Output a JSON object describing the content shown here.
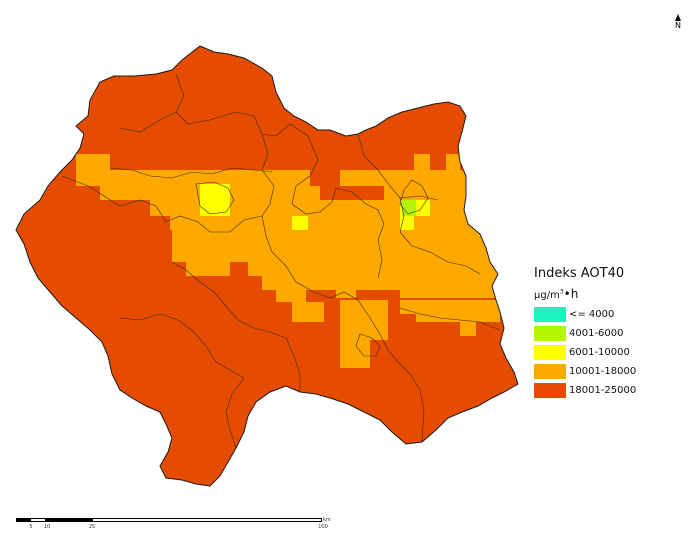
{
  "legend": {
    "title": "Indeks AOT40",
    "unit_prefix": "µg/m",
    "unit_exp": "3",
    "unit_suffix": "•h",
    "classes": [
      {
        "label": "<= 4000",
        "color": "#19f5c0"
      },
      {
        "label": "4001-6000",
        "color": "#b5f500"
      },
      {
        "label": "6001-10000",
        "color": "#ffff00"
      },
      {
        "label": "10001-18000",
        "color": "#ffa800"
      },
      {
        "label": "18001-25000",
        "color": "#e54c00"
      }
    ]
  },
  "north": {
    "label": "N"
  },
  "scale": {
    "unit": "km",
    "ticks": [
      "5",
      "10",
      "25",
      "100"
    ]
  }
}
